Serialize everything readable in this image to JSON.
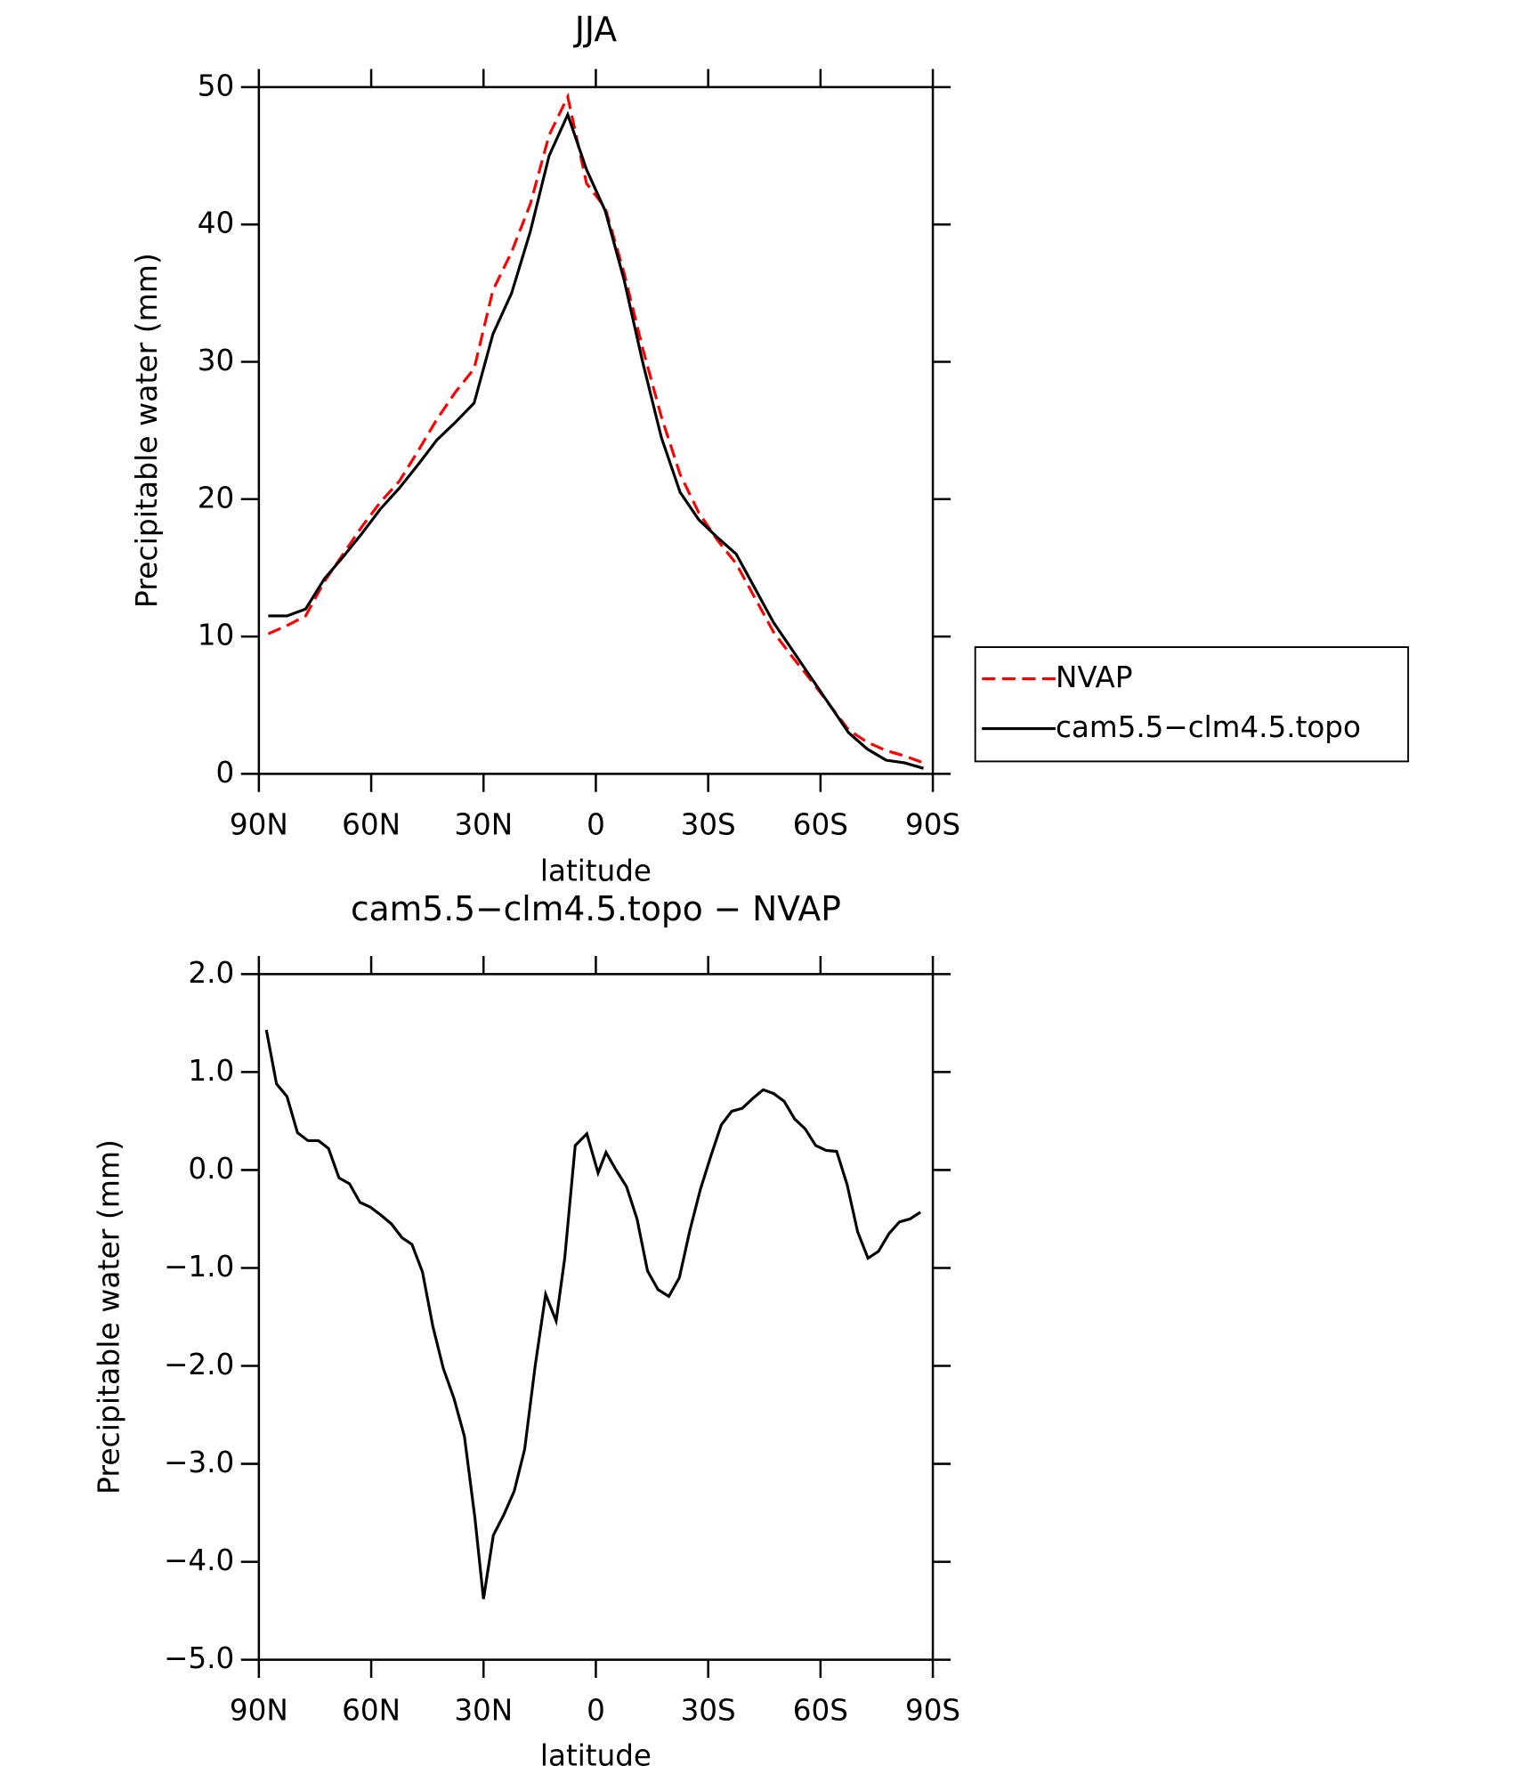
{
  "chart_data": [
    {
      "type": "line",
      "title": "JJA",
      "xlabel": "latitude",
      "ylabel": "Precipitable water (mm)",
      "x": [
        87.5,
        82.5,
        77.5,
        72.5,
        67.5,
        62.5,
        57.5,
        52.5,
        47.5,
        42.5,
        37.5,
        32.5,
        27.5,
        22.5,
        17.5,
        12.5,
        7.5,
        2.5,
        -2.5,
        -7.5,
        -12.5,
        -17.5,
        -22.5,
        -27.5,
        -32.5,
        -37.5,
        -42.5,
        -47.5,
        -52.5,
        -57.5,
        -62.5,
        -67.5,
        -72.5,
        -77.5,
        -82.5,
        -87.5
      ],
      "series": [
        {
          "name": "NVAP",
          "color": "#ff0000",
          "line_style": "dashed",
          "values": [
            10.2,
            10.8,
            11.5,
            14.0,
            16.0,
            18.0,
            19.8,
            21.3,
            23.5,
            25.8,
            27.8,
            29.5,
            35.2,
            38.0,
            41.5,
            46.5,
            49.3,
            43.0,
            41.2,
            36.5,
            31.0,
            26.0,
            21.8,
            19.0,
            17.0,
            15.3,
            12.8,
            10.3,
            8.5,
            6.8,
            5.0,
            3.2,
            2.3,
            1.7,
            1.3,
            0.8
          ]
        },
        {
          "name": "cam5.5−clm4.5.topo",
          "color": "#000000",
          "line_style": "solid",
          "values": [
            11.5,
            11.5,
            12.0,
            14.2,
            15.8,
            17.5,
            19.3,
            20.8,
            22.5,
            24.3,
            25.6,
            27.0,
            32.0,
            35.0,
            39.5,
            45.0,
            48.0,
            44.0,
            41.0,
            36.0,
            30.0,
            24.5,
            20.5,
            18.5,
            17.2,
            16.0,
            13.5,
            11.0,
            9.0,
            7.0,
            5.0,
            3.0,
            1.8,
            1.0,
            0.8,
            0.4
          ]
        }
      ],
      "xlim": [
        90,
        -90
      ],
      "xticks": [
        {
          "value": 90,
          "label": "90N"
        },
        {
          "value": 60,
          "label": "60N"
        },
        {
          "value": 30,
          "label": "30N"
        },
        0,
        {
          "value": -30,
          "label": "30S"
        },
        {
          "value": -60,
          "label": "60S"
        },
        {
          "value": -90,
          "label": "90S"
        }
      ],
      "ylim": [
        0,
        50
      ],
      "yticks": [
        0,
        10,
        20,
        30,
        40,
        50
      ],
      "legend": "right"
    },
    {
      "type": "line",
      "title": "cam5.5−clm4.5.topo − NVAP",
      "xlabel": "latitude",
      "ylabel": "Precipitable water (mm)",
      "x": [
        88,
        85.3,
        82.5,
        79.7,
        76.9,
        74.1,
        71.4,
        68.6,
        65.8,
        63,
        60.2,
        57.4,
        54.6,
        51.8,
        49.1,
        46.3,
        43.5,
        40.7,
        37.9,
        35.1,
        32.3,
        30,
        27.4,
        24.6,
        21.8,
        19,
        16.2,
        13.4,
        10.6,
        8.3,
        5.5,
        2.4,
        -0.6,
        -2.7,
        -5.4,
        -8.2,
        -11,
        -13.8,
        -16.6,
        -19.5,
        -22.3,
        -25.1,
        -27.9,
        -30.7,
        -33.5,
        -36.3,
        -39.1,
        -41.9,
        -44.7,
        -47.5,
        -50.3,
        -53.1,
        -55.9,
        -58.7,
        -61.5,
        -64.3,
        -67.1,
        -69.9,
        -72.7,
        -75.5,
        -78.3,
        -81.1,
        -83.9,
        -86.7
      ],
      "series": [
        {
          "color": "#000000",
          "line_style": "solid",
          "values": [
            1.43,
            0.88,
            0.75,
            0.38,
            0.3,
            0.3,
            0.22,
            -0.08,
            -0.14,
            -0.33,
            -0.38,
            -0.46,
            -0.55,
            -0.69,
            -0.76,
            -1.04,
            -1.6,
            -2.03,
            -2.33,
            -2.72,
            -3.55,
            -4.38,
            -3.73,
            -3.52,
            -3.28,
            -2.85,
            -2.0,
            -1.27,
            -1.54,
            -0.9,
            0.25,
            0.37,
            -0.03,
            0.18,
            0.0,
            -0.17,
            -0.5,
            -1.03,
            -1.22,
            -1.29,
            -1.1,
            -0.62,
            -0.2,
            0.14,
            0.46,
            0.6,
            0.63,
            0.73,
            0.82,
            0.78,
            0.7,
            0.52,
            0.42,
            0.25,
            0.2,
            0.19,
            -0.15,
            -0.63,
            -0.9,
            -0.83,
            -0.65,
            -0.53,
            -0.5,
            -0.43
          ]
        }
      ],
      "xlim": [
        90,
        -90
      ],
      "xticks": [
        {
          "value": 90,
          "label": "90N"
        },
        {
          "value": 60,
          "label": "60N"
        },
        {
          "value": 30,
          "label": "30N"
        },
        0,
        {
          "value": -30,
          "label": "30S"
        },
        {
          "value": -60,
          "label": "60S"
        },
        {
          "value": -90,
          "label": "90S"
        }
      ],
      "ylim": [
        -5,
        2
      ],
      "yticks": [
        {
          "value": -5,
          "label": "−5.0"
        },
        {
          "value": -4,
          "label": "−4.0"
        },
        {
          "value": -3,
          "label": "−3.0"
        },
        {
          "value": -2,
          "label": "−2.0"
        },
        {
          "value": -1,
          "label": "−1.0"
        },
        {
          "value": 0,
          "label": "0.0"
        },
        {
          "value": 1,
          "label": "1.0"
        },
        {
          "value": 2,
          "label": "2.0"
        }
      ]
    }
  ]
}
